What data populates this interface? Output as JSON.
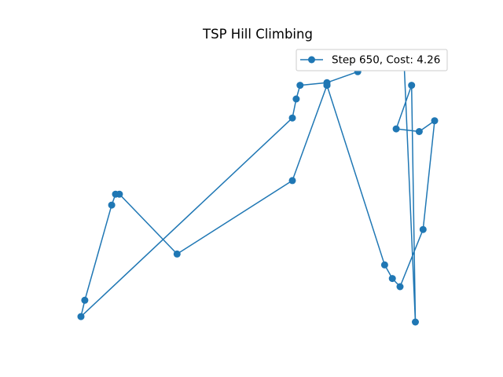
{
  "chart_data": {
    "type": "line",
    "title": "TSP Hill Climbing",
    "xlabel": "",
    "ylabel": "",
    "axes_visible": false,
    "grid": false,
    "legend_position": "upper-right",
    "color": "#1f77b4",
    "series": [
      {
        "name": "Step 650, Cost: 4.26",
        "marker": "circle",
        "x": [
          0.7,
          0.61,
          0.31,
          0.16,
          0.15,
          0.14,
          0.07,
          0.06,
          0.61,
          0.62,
          0.63,
          0.7,
          0.78,
          0.77,
          0.85,
          0.9,
          0.93,
          0.92,
          0.88,
          0.94,
          0.98,
          0.95,
          0.89,
          0.87,
          0.85,
          0.7
        ],
        "y": [
          0.97,
          0.62,
          0.35,
          0.57,
          0.57,
          0.53,
          0.18,
          0.12,
          0.85,
          0.92,
          0.97,
          0.98,
          1.02,
          1.06,
          1.05,
          1.07,
          0.1,
          0.97,
          0.81,
          0.8,
          0.84,
          0.44,
          0.23,
          0.26,
          0.31,
          0.97
        ]
      }
    ]
  }
}
